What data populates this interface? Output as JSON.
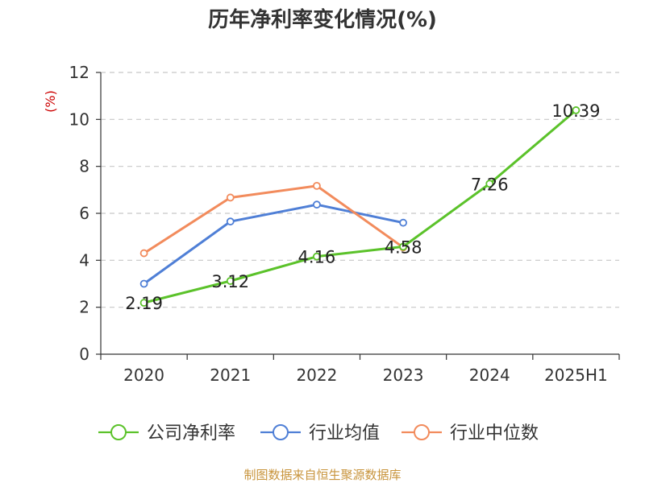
{
  "chart_data": {
    "type": "line",
    "title": "历年净利率变化情况(%)",
    "unit": "(%)",
    "categories": [
      "2020",
      "2021",
      "2022",
      "2023",
      "2024",
      "2025H1"
    ],
    "ylim": [
      0,
      12
    ],
    "yticks": [
      0,
      2,
      4,
      6,
      8,
      10,
      12
    ],
    "grid": true,
    "legend_position": "bottom",
    "series": [
      {
        "name": "公司净利率",
        "color": "#5bc22a",
        "values": [
          2.19,
          3.12,
          4.16,
          4.58,
          7.26,
          10.39
        ],
        "labels": [
          "2.19",
          "3.12",
          "4.16",
          "4.58",
          "7.26",
          "10.39"
        ]
      },
      {
        "name": "行业均值",
        "color": "#4f7fd6",
        "values": [
          3.0,
          5.65,
          6.37,
          5.6,
          null,
          null
        ]
      },
      {
        "name": "行业中位数",
        "color": "#f28b5c",
        "values": [
          4.3,
          6.67,
          7.17,
          4.55,
          null,
          null
        ]
      }
    ]
  },
  "source": "制图数据来自恒生聚源数据库"
}
